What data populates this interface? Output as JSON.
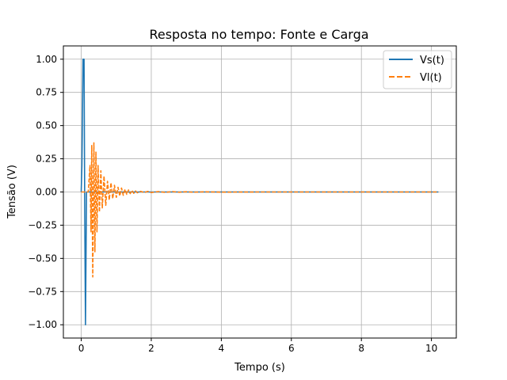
{
  "chart_data": {
    "type": "line",
    "title": "Resposta no tempo: Fonte e Carga",
    "xlabel": "Tempo (s)",
    "ylabel": "Tensão (V)",
    "xlim": [
      -0.51,
      10.71
    ],
    "ylim": [
      -1.1,
      1.1
    ],
    "xticks": [
      0,
      2,
      4,
      6,
      8,
      10
    ],
    "xtick_labels": [
      "0",
      "2",
      "4",
      "6",
      "8",
      "10"
    ],
    "yticks": [
      -1.0,
      -0.75,
      -0.5,
      -0.25,
      0.0,
      0.25,
      0.5,
      0.75,
      1.0
    ],
    "ytick_labels": [
      "−1.00",
      "−0.75",
      "−0.50",
      "−0.25",
      "0.00",
      "0.25",
      "0.50",
      "0.75",
      "1.00"
    ],
    "grid": true,
    "legend_position": "top-right",
    "series": [
      {
        "name": "Vs(t)",
        "color": "#1f77b4",
        "style": "solid",
        "x": [
          0,
          0.02,
          0.05,
          0.08,
          0.1,
          0.12,
          0.15,
          0.2,
          10.2
        ],
        "y": [
          0,
          0.2,
          1.0,
          1.0,
          -0.2,
          -1.0,
          0.0,
          0.0,
          0.0
        ]
      },
      {
        "name": "Vl(t)",
        "color": "#ff7f0e",
        "style": "dashed",
        "x": [
          0,
          0.2,
          0.25,
          0.28,
          0.3,
          0.33,
          0.36,
          0.39,
          0.42,
          0.45,
          0.48,
          0.52,
          0.56,
          0.6,
          0.65,
          0.7,
          0.75,
          0.8,
          0.85,
          0.9,
          0.95,
          1.0,
          1.05,
          1.1,
          1.15,
          1.2,
          1.25,
          1.3,
          1.35,
          1.4,
          1.45,
          1.5,
          1.55,
          1.6,
          1.7,
          1.8,
          1.9,
          2.0,
          2.2,
          2.4,
          2.6,
          2.8,
          3.0,
          3.2,
          3.5,
          4.0,
          5.0,
          10.2
        ],
        "y": [
          0,
          0,
          0.2,
          -0.3,
          0.35,
          -0.64,
          0.37,
          -0.45,
          0.3,
          -0.3,
          0.2,
          -0.15,
          0.16,
          -0.12,
          0.12,
          -0.1,
          0.08,
          -0.06,
          0.07,
          -0.05,
          0.05,
          -0.04,
          0.035,
          -0.03,
          0.03,
          -0.025,
          0.02,
          -0.018,
          0.015,
          -0.012,
          0.012,
          -0.01,
          0.008,
          -0.006,
          0.005,
          -0.004,
          0.004,
          -0.004,
          0.003,
          -0.003,
          0.003,
          -0.002,
          0.002,
          -0.002,
          0.001,
          -0.001,
          0.0,
          0.0
        ]
      }
    ]
  }
}
